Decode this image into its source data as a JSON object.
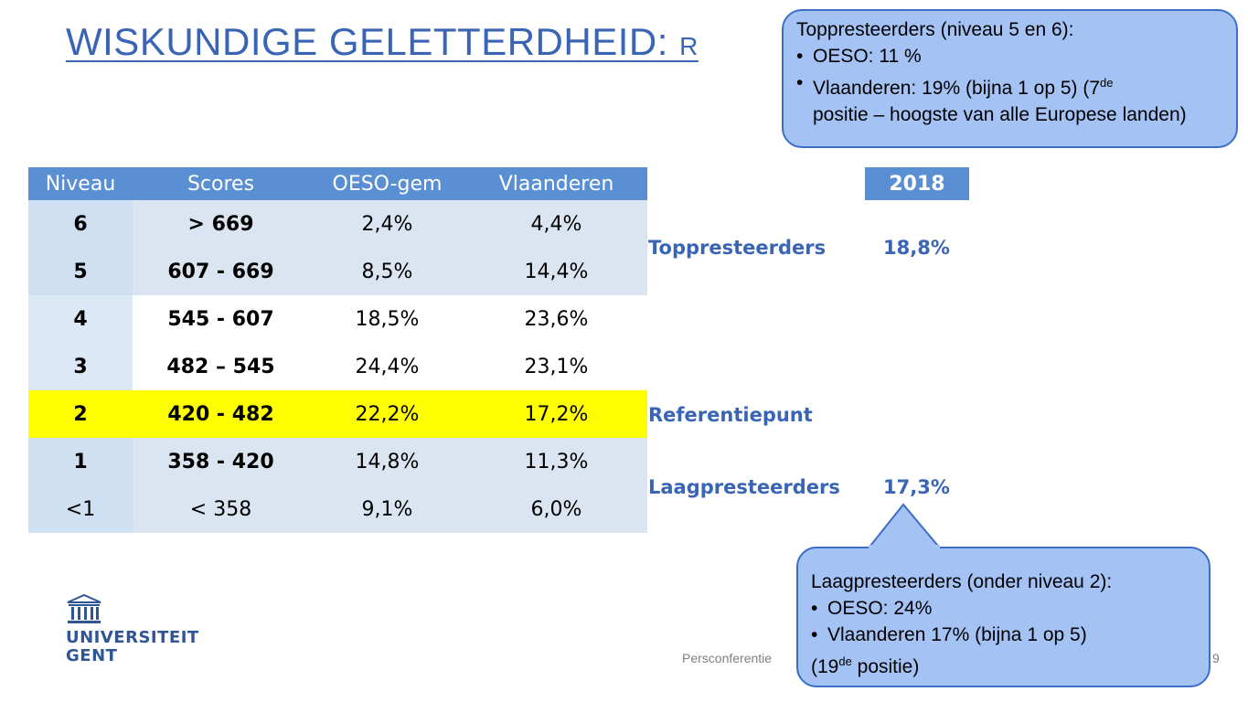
{
  "title": {
    "main": "WISKUNDIGE GELETTERDHEID: ",
    "rest": "R"
  },
  "table": {
    "headers": [
      "Niveau",
      "Scores",
      "OESO-gem",
      "Vlaanderen"
    ],
    "rows": [
      {
        "niveau": "6",
        "scores": "> 669",
        "oeso": "2,4%",
        "vlaanderen": "4,4%"
      },
      {
        "niveau": "5",
        "scores": "607 - 669",
        "oeso": "8,5%",
        "vlaanderen": "14,4%"
      },
      {
        "niveau": "4",
        "scores": "545 - 607",
        "oeso": "18,5%",
        "vlaanderen": "23,6%"
      },
      {
        "niveau": "3",
        "scores": "482 – 545",
        "oeso": "24,4%",
        "vlaanderen": "23,1%"
      },
      {
        "niveau": "2",
        "scores": "420 - 482",
        "oeso": "22,2%",
        "vlaanderen": "17,2%"
      },
      {
        "niveau": "1",
        "scores": "358 - 420",
        "oeso": "14,8%",
        "vlaanderen": "11,3%"
      },
      {
        "niveau": "<1",
        "scores": "< 358",
        "oeso": "9,1%",
        "vlaanderen": "6,0%"
      }
    ]
  },
  "summary": {
    "year_header": "2018",
    "toppresteerders_label": "Toppresteerders",
    "toppresteerders_value": "18,8%",
    "referentiepunt_label": "Referentiepunt",
    "laagpresteerders_label": "Laagpresteerders",
    "laagpresteerders_value": "17,3%"
  },
  "callout_top": {
    "heading": "Toppresteerders (niveau 5 en 6):",
    "item1": "OESO: 11 %",
    "item2_a": "Vlaanderen: 19% (bijna 1 op 5) (7",
    "item2_sup": "de",
    "item2_b": "positie – hoogste van alle Europese landen)"
  },
  "callout_bottom": {
    "heading": "Laagpresteerders (onder niveau 2):",
    "item1": "OESO: 24%",
    "item2_a": "Vlaanderen 17% (bijna 1 op 5)",
    "item2_b": "(19",
    "item2_sup": "de",
    "item2_c": " positie)"
  },
  "logo": {
    "line1": "UNIVERSITEIT",
    "line2": "GENT"
  },
  "footer": {
    "text": "Persconferentie",
    "page": "9"
  },
  "colors": {
    "accent": "#3a64b4",
    "header_bg": "#5b8fd3",
    "highlight": "#ffff00",
    "callout_bg": "#a4c2f4"
  }
}
